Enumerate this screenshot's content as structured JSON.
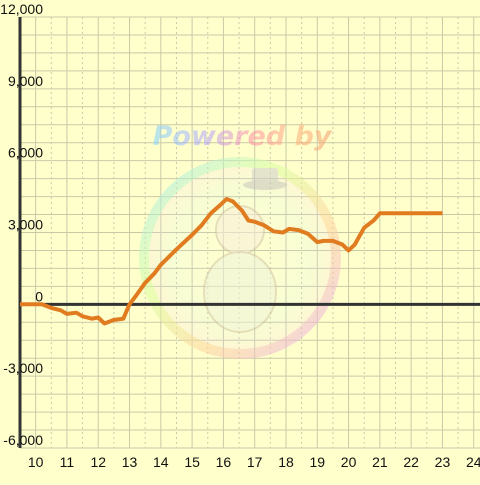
{
  "watermark": {
    "text": "Powered by"
  },
  "colors": {
    "background": "#ffffcc",
    "grid_major": "#c9c9a8",
    "grid_minor": "#c9c9a8",
    "axis": "#333333",
    "line": "#e07b1f",
    "text": "#111111"
  },
  "chart_data": {
    "type": "line",
    "title": "",
    "xlabel": "",
    "ylabel": "",
    "xlim": [
      9.5,
      24.2
    ],
    "ylim": [
      -6000,
      12000
    ],
    "x_ticks": [
      10,
      11,
      12,
      13,
      14,
      15,
      16,
      17,
      18,
      19,
      20,
      21,
      22,
      23,
      24
    ],
    "y_ticks": [
      -6000,
      -3000,
      0,
      3000,
      6000,
      9000,
      12000
    ],
    "x_tick_labels": [
      "10",
      "11",
      "12",
      "13",
      "14",
      "15",
      "16",
      "17",
      "18",
      "19",
      "20",
      "21",
      "22",
      "23",
      "24"
    ],
    "y_tick_labels": [
      "-6,000",
      "-3,000",
      "0",
      "3,000",
      "6,000",
      "9,000",
      "12,000"
    ],
    "grid": true,
    "legend": "none",
    "series": [
      {
        "x": [
          9.5,
          10.2,
          10.5,
          10.8,
          11.0,
          11.3,
          11.5,
          11.8,
          12.0,
          12.2,
          12.5,
          12.8,
          13.0,
          13.2,
          13.5,
          13.8,
          14.0,
          14.5,
          15.0,
          15.3,
          15.6,
          15.9,
          16.1,
          16.3,
          16.6,
          16.8,
          17.0,
          17.3,
          17.6,
          17.9,
          18.1,
          18.4,
          18.7,
          19.0,
          19.2,
          19.5,
          19.8,
          20.0,
          20.2,
          20.5,
          20.8,
          21.0,
          21.3,
          21.6,
          21.9,
          22.2,
          22.5,
          22.8,
          23.0
        ],
        "values": [
          0,
          0,
          -150,
          -250,
          -400,
          -350,
          -500,
          -600,
          -550,
          -800,
          -650,
          -600,
          0,
          350,
          900,
          1300,
          1650,
          2300,
          2900,
          3300,
          3800,
          4150,
          4400,
          4300,
          3900,
          3500,
          3450,
          3300,
          3050,
          3000,
          3150,
          3100,
          2950,
          2600,
          2650,
          2650,
          2500,
          2250,
          2500,
          3200,
          3500,
          3800,
          3800,
          3800,
          3800,
          3800,
          3800,
          3800,
          3800
        ]
      }
    ]
  }
}
